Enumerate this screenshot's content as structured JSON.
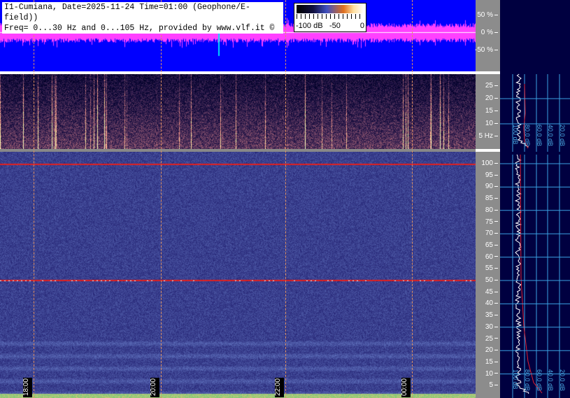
{
  "header": {
    "line1": "I1-Cumiana, Date=2025-11-24 Time=01:00 (Geophone/E-field))",
    "line2": "Freq= 0...30 Hz and 0...105 Hz, provided by www.vlf.it ©"
  },
  "colorbar": {
    "labels": [
      "-100 dB",
      "-50",
      "0"
    ],
    "range_db": [
      -100,
      0
    ]
  },
  "chart_data": [
    {
      "type": "line",
      "title": "",
      "ylabel": "",
      "y_ticks": [
        "50 %",
        "0 %",
        "-50 %"
      ],
      "ylim": [
        -70,
        70
      ],
      "description_series": "waveform amplitude",
      "colors": {
        "bg": "#0000ff",
        "trace": "#ff40ff"
      }
    },
    {
      "type": "heatmap",
      "ylim": [
        0,
        30
      ],
      "y_ticks": [
        "25",
        "20",
        "15",
        "10",
        "5 Hz"
      ],
      "x_ticks": [
        "18:00",
        "20:00",
        "22:00",
        "00:00"
      ]
    },
    {
      "type": "heatmap",
      "ylim": [
        0,
        105
      ],
      "y_ticks": [
        "100",
        "95",
        "90",
        "85",
        "80",
        "75",
        "70",
        "65",
        "60",
        "55",
        "50",
        "45",
        "40",
        "35",
        "30",
        "25",
        "20",
        "15",
        "10",
        "5"
      ],
      "x_ticks": [
        "18:00",
        "20:00",
        "22:00",
        "00:00"
      ],
      "lines_hz": [
        50,
        100
      ]
    }
  ],
  "side_panel": {
    "db_labels": [
      "100 dB",
      "80.0 dB",
      "60.0 dB",
      "40.0 dB",
      "20.0 dB"
    ]
  },
  "time_labels": [
    "18:00",
    "20:00",
    "22:00",
    "00:00"
  ]
}
